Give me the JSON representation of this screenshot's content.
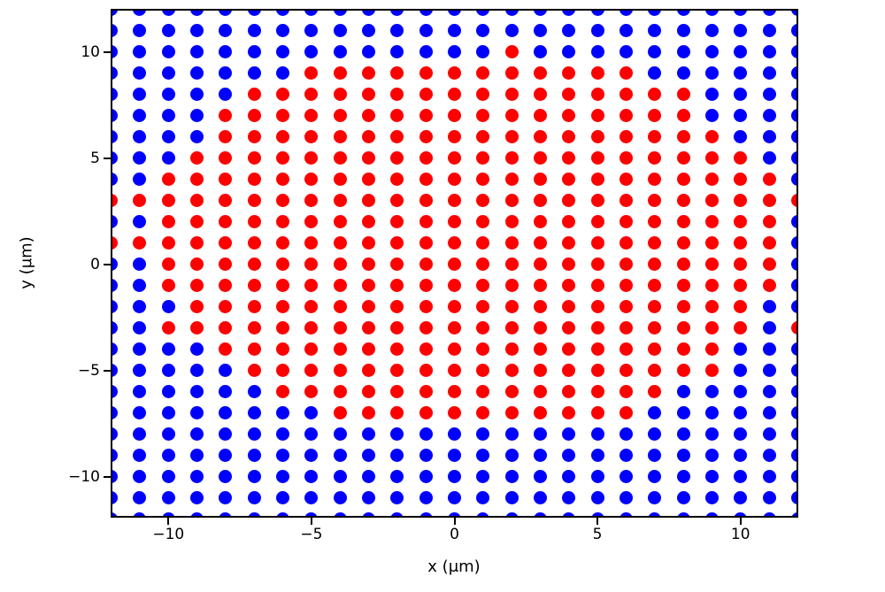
{
  "figure": {
    "background": "#ffffff",
    "frame_color": "#000000",
    "tick_color": "#000000",
    "text_color": "#000000"
  },
  "chart_data": {
    "type": "scatter",
    "title": "",
    "xlabel": "x (μm)",
    "ylabel": "y (μm)",
    "xlim": [
      -12.02,
      12.02
    ],
    "ylim": [
      -11.92,
      12.04
    ],
    "x_ticks": [
      -10,
      -5,
      0,
      5,
      10
    ],
    "y_ticks": [
      10,
      5,
      0,
      -5,
      -10
    ],
    "x_tick_labels": [
      "−10",
      "−5",
      "0",
      "5",
      "10"
    ],
    "y_tick_labels": [
      "10",
      "5",
      "0",
      "−5",
      "−10"
    ],
    "grid": false,
    "legend": false,
    "marker": "circle",
    "marker_size_px": 15,
    "colors": {
      "r": "#ff0000",
      "b": "#0000ff"
    },
    "x_values": [
      -12,
      -11,
      -10,
      -9,
      -8,
      -7,
      -6,
      -5,
      -4,
      -3,
      -2,
      -1,
      0,
      1,
      2,
      3,
      4,
      5,
      6,
      7,
      8,
      9,
      10,
      11,
      12
    ],
    "pattern_key": {
      "r": "red point",
      "b": "blue point"
    },
    "rows": [
      {
        "y": 12,
        "pattern": "bbbbbbbbbbbbbbbbbbbbbbbbb"
      },
      {
        "y": 11,
        "pattern": "bbbbbbbbbbbbbbbbbbbbbbbbb"
      },
      {
        "y": 10,
        "pattern": "bbbbbbbbbbbbbbrbbbbbbbbbb"
      },
      {
        "y": 9,
        "pattern": "bbbbbbbrrrrrrrrrrrrbbbbbb"
      },
      {
        "y": 8,
        "pattern": "bbbbbrrrrrrrrrrrrrrrrbbbb"
      },
      {
        "y": 7,
        "pattern": "bbbbrrrrrrrrrrrrrrrrrbbbb"
      },
      {
        "y": 6,
        "pattern": "bbbbrrrrrrrrrrrrrrrrrrbbb"
      },
      {
        "y": 5,
        "pattern": "bbbrrrrrrrrrrrrrrrrrrrrbb"
      },
      {
        "y": 4,
        "pattern": "bbrrrrrrrrrrrrrrrrrrrrrrb"
      },
      {
        "y": 3,
        "pattern": "rrrrrrrrrrrrrrrrrrrrrrrrr"
      },
      {
        "y": 2,
        "pattern": "bbrrrrrrrrrrrrrrrrrrrrrrb"
      },
      {
        "y": 1,
        "pattern": "rrrrrrrrrrrrrrrrrrrrrrrrb"
      },
      {
        "y": 0,
        "pattern": "bbrrrrrrrrrrrrrrrrrrrrrrb"
      },
      {
        "y": -1,
        "pattern": "bbrrrrrrrrrrrrrrrrrrrrrrb"
      },
      {
        "y": -2,
        "pattern": "bbbrrrrrrrrrrrrrrrrrrrrbb"
      },
      {
        "y": -3,
        "pattern": "bbrrrrrrrrrrrrrrrrrrrrrbr"
      },
      {
        "y": -4,
        "pattern": "bbbbrrrrrrrrrrrrrrrrrrbbb"
      },
      {
        "y": -5,
        "pattern": "bbbbbrrrrrrrrrrrrrrrrrbbb"
      },
      {
        "y": -6,
        "pattern": "bbbbbbrrrrrrrrrrrrrrbbbbb"
      },
      {
        "y": -7,
        "pattern": "bbbbbbbbrrrrrrrrrrrbbbbbb"
      },
      {
        "y": -8,
        "pattern": "bbbbbbbbbbbbbbbbbbbbbbbbb"
      },
      {
        "y": -9,
        "pattern": "bbbbbbbbbbbbbbbbbbbbbbbbb"
      },
      {
        "y": -10,
        "pattern": "bbbbbbbbbbbbbbbbbbbbbbbbb"
      },
      {
        "y": -11,
        "pattern": "bbbbbbbbbbbbbbbbbbbbbbbbb"
      },
      {
        "y": -12,
        "pattern": "bbbbbbbbbbbbbbbbbbbbbbbbb"
      }
    ]
  }
}
